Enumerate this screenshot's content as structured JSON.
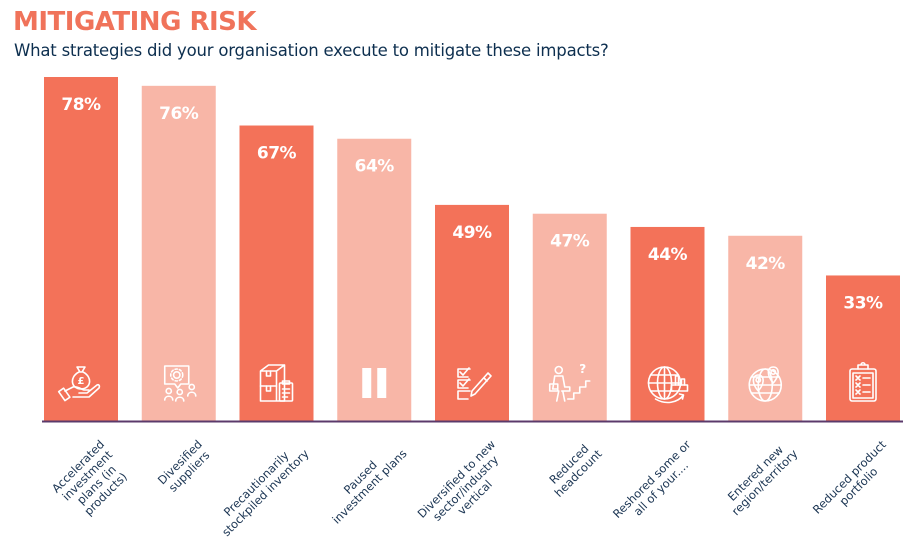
{
  "header": {
    "title": "MITIGATING RISK",
    "subtitle": "What strategies did your organisation execute to mitigate these impacts?"
  },
  "colors": {
    "bar_dark": "#f37259",
    "bar_light": "#f8b6a7",
    "title": "#f0735a",
    "subtitle": "#0d2f4f",
    "axis": "#5b3a6b",
    "label": "#1b3553"
  },
  "chart_data": {
    "type": "bar",
    "title": "MITIGATING RISK",
    "subtitle": "What strategies did your organisation execute to mitigate these impacts?",
    "xlabel": "",
    "ylabel": "",
    "ylim": [
      0,
      78
    ],
    "grid": false,
    "legend": "none",
    "value_format": "percent",
    "categories": [
      "Accelerated investment plans (in products)",
      "Divesified suppliers",
      "Precautionarily stockpiled inventory",
      "Paused investment plans",
      "Diversified to new sector/industry vertical",
      "Reduced headcount",
      "Reshored some or all of your....",
      "Entered new region/territory",
      "Reduced product portfolio"
    ],
    "label_lines": [
      [
        "Accelerated",
        "investment",
        "plans (in",
        "products)"
      ],
      [
        "Divesified",
        "suppliers"
      ],
      [
        "Precautionarily",
        "stockpiled inventory"
      ],
      [
        "Paused",
        "investment plans"
      ],
      [
        "Diversified to new",
        "sector/industry",
        "vertical"
      ],
      [
        "Reduced",
        "headcount"
      ],
      [
        "Reshored some or",
        "all of your...."
      ],
      [
        "Entered new",
        "region/territory"
      ],
      [
        "Reduced product",
        "portfolio"
      ]
    ],
    "values": [
      78,
      76,
      67,
      64,
      49,
      47,
      44,
      42,
      33
    ],
    "value_labels": [
      "78%",
      "76%",
      "67%",
      "64%",
      "49%",
      "47%",
      "44%",
      "42%",
      "33%"
    ],
    "bar_shades": [
      "dark",
      "light",
      "dark",
      "light",
      "dark",
      "light",
      "dark",
      "light",
      "dark"
    ],
    "icons": [
      "money-bag-hand-icon",
      "supplier-network-icon",
      "stockpile-boxes-icon",
      "pause-icon",
      "checklist-pen-icon",
      "person-stairs-question-icon",
      "globe-factory-icon",
      "globe-location-pins-icon",
      "clipboard-list-icon"
    ]
  }
}
